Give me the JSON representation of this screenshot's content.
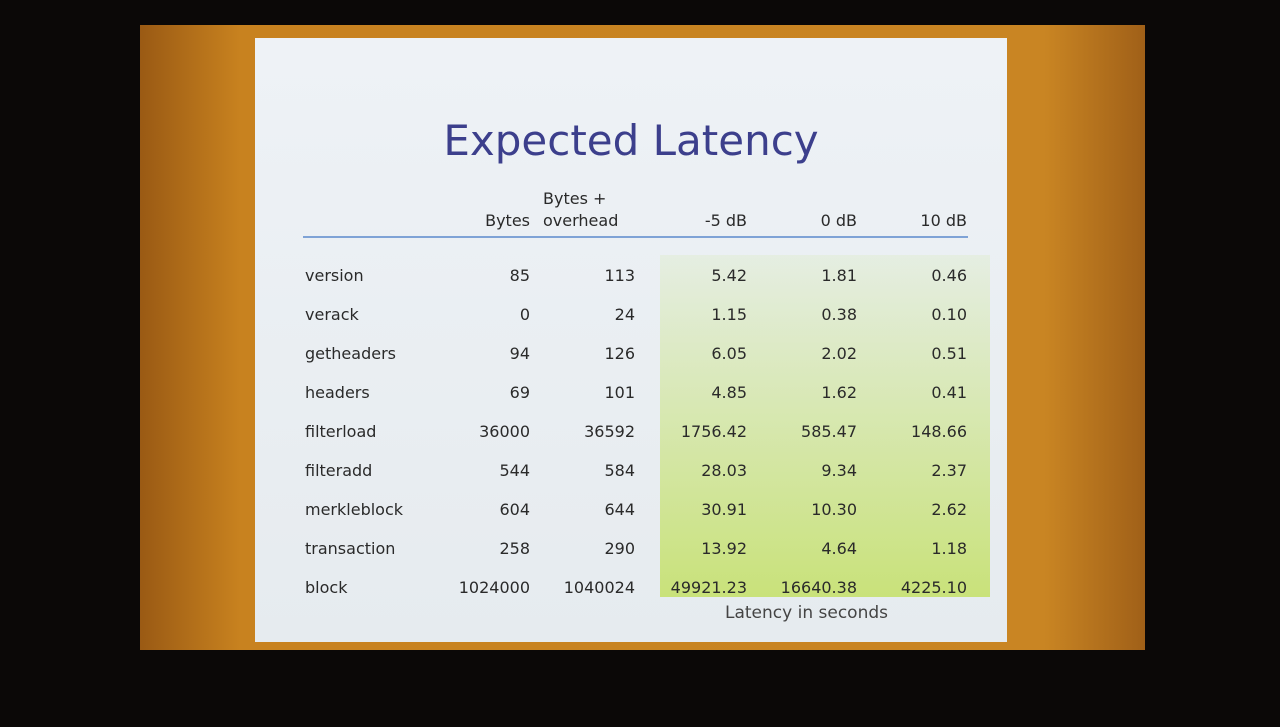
{
  "slide": {
    "title": "Expected Latency",
    "table": {
      "headers": [
        "Bytes",
        "Bytes + overhead",
        "-5 dB",
        "0 dB",
        "10 dB"
      ],
      "rows": [
        [
          "version",
          "85",
          "113",
          "5.42",
          "1.81",
          "0.46"
        ],
        [
          "verack",
          "0",
          "24",
          "1.15",
          "0.38",
          "0.10"
        ],
        [
          "getheaders",
          "94",
          "126",
          "6.05",
          "2.02",
          "0.51"
        ],
        [
          "headers",
          "69",
          "101",
          "4.85",
          "1.62",
          "0.41"
        ],
        [
          "filterload",
          "36000",
          "36592",
          "1756.42",
          "585.47",
          "148.66"
        ],
        [
          "filteradd",
          "544",
          "584",
          "28.03",
          "9.34",
          "2.37"
        ],
        [
          "merkleblock",
          "604",
          "644",
          "30.91",
          "10.30",
          "2.62"
        ],
        [
          "transaction",
          "258",
          "290",
          "13.92",
          "4.64",
          "1.18"
        ],
        [
          "block",
          "1024000",
          "1040024",
          "49921.23",
          "16640.38",
          "4225.10"
        ]
      ]
    },
    "caption": "Latency in seconds"
  }
}
